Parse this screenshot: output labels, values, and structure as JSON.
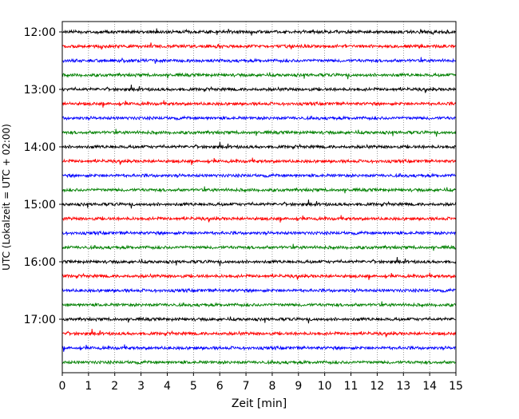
{
  "chart_data": {
    "type": "line",
    "title": "",
    "xlabel": "Zeit  [min]",
    "ylabel": "UTC (Lokalzeit = UTC + 02:00)",
    "xlim": [
      0,
      15
    ],
    "xticks": [
      "0",
      "1",
      "2",
      "3",
      "4",
      "5",
      "6",
      "7",
      "8",
      "9",
      "10",
      "11",
      "12",
      "13",
      "14",
      "15"
    ],
    "yticks": [
      {
        "label": "12:00",
        "minute": 0
      },
      {
        "label": "13:00",
        "minute": 60
      },
      {
        "label": "14:00",
        "minute": 120
      },
      {
        "label": "15:00",
        "minute": 180
      },
      {
        "label": "16:00",
        "minute": 240
      },
      {
        "label": "17:00",
        "minute": 300
      }
    ],
    "grid": "vertical-dotted",
    "row_colors": [
      "#000000",
      "#ff0000",
      "#0000ff",
      "#008000"
    ],
    "rows": [
      {
        "start": "12:00",
        "end_minute": 15
      },
      {
        "start": "12:15",
        "end_minute": 15
      },
      {
        "start": "12:30",
        "end_minute": 15
      },
      {
        "start": "12:45",
        "end_minute": 15
      },
      {
        "start": "13:00",
        "end_minute": 15
      },
      {
        "start": "13:15",
        "end_minute": 15
      },
      {
        "start": "13:30",
        "end_minute": 15
      },
      {
        "start": "13:45",
        "end_minute": 15
      },
      {
        "start": "14:00",
        "end_minute": 15
      },
      {
        "start": "14:15",
        "end_minute": 15
      },
      {
        "start": "14:30",
        "end_minute": 15
      },
      {
        "start": "14:45",
        "end_minute": 15
      },
      {
        "start": "15:00",
        "end_minute": 15
      },
      {
        "start": "15:15",
        "end_minute": 15
      },
      {
        "start": "15:30",
        "end_minute": 15
      },
      {
        "start": "15:45",
        "end_minute": 15
      },
      {
        "start": "16:00",
        "end_minute": 15
      },
      {
        "start": "16:15",
        "end_minute": 15
      },
      {
        "start": "16:30",
        "end_minute": 15
      },
      {
        "start": "16:45",
        "end_minute": 15
      },
      {
        "start": "17:00",
        "end_minute": 15
      },
      {
        "start": "17:15",
        "end_minute": 15
      },
      {
        "start": "17:30",
        "end_minute": 15
      },
      {
        "start": "17:45",
        "end_minute": 15
      }
    ]
  }
}
